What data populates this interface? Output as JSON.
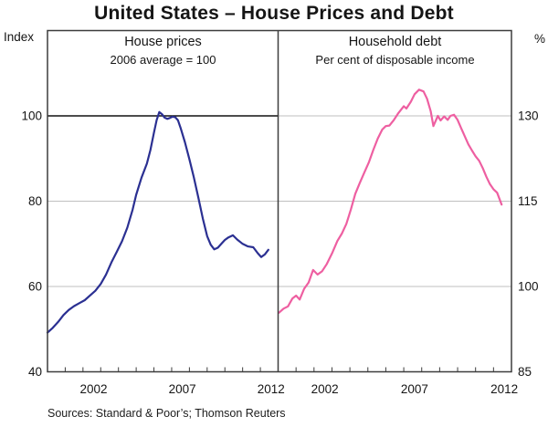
{
  "title": "United States – House Prices and Debt",
  "left_axis_unit": "Index",
  "right_axis_unit": "%",
  "source_note": "Sources: Standard & Poor’s; Thomson Reuters",
  "colors": {
    "house_prices_line": "#2b3092",
    "household_debt_line": "#ee5fa1",
    "gridline": "#bfbfbf",
    "reference_line": "#111111",
    "frame": "#3d3d3d",
    "text": "#151515"
  },
  "chart_data": [
    {
      "type": "line",
      "panel": "left",
      "title": "House prices",
      "subtitle": "2006 average = 100",
      "ylabel": "Index",
      "ylim": [
        40,
        120
      ],
      "yticks": [
        40,
        60,
        80,
        100
      ],
      "ref_line": 100,
      "xlim": [
        2000,
        2013
      ],
      "xtick_years": [
        2002,
        2007,
        2012
      ],
      "grid": true,
      "legend": "none",
      "series": [
        {
          "id": "house-prices-line",
          "name": "House prices (2006 average = 100)",
          "color": "#2b3092",
          "x": [
            2000.0,
            2000.3,
            2000.6,
            2000.9,
            2001.2,
            2001.5,
            2001.8,
            2002.1,
            2002.4,
            2002.7,
            2003.0,
            2003.3,
            2003.6,
            2003.9,
            2004.2,
            2004.5,
            2004.8,
            2005.0,
            2005.3,
            2005.6,
            2005.8,
            2006.0,
            2006.15,
            2006.3,
            2006.45,
            2006.6,
            2006.75,
            2006.9,
            2007.05,
            2007.2,
            2007.35,
            2007.5,
            2007.75,
            2008.0,
            2008.25,
            2008.5,
            2008.75,
            2009.0,
            2009.2,
            2009.4,
            2009.6,
            2009.8,
            2010.0,
            2010.2,
            2010.45,
            2010.7,
            2011.0,
            2011.3,
            2011.6,
            2011.85,
            2012.05,
            2012.25,
            2012.45
          ],
          "y": [
            49.2,
            50.3,
            51.7,
            53.3,
            54.5,
            55.4,
            56.1,
            56.8,
            57.9,
            59.0,
            60.6,
            62.8,
            65.6,
            68.1,
            70.6,
            73.8,
            78.0,
            81.5,
            85.5,
            88.8,
            92.0,
            96.0,
            99.0,
            100.9,
            100.4,
            99.6,
            99.3,
            99.5,
            99.8,
            99.7,
            99.0,
            97.2,
            93.8,
            89.8,
            85.6,
            80.9,
            76.0,
            71.8,
            69.8,
            68.7,
            69.1,
            70.0,
            70.9,
            71.5,
            72.0,
            71.0,
            70.0,
            69.4,
            69.2,
            67.8,
            66.9,
            67.5,
            68.6
          ]
        }
      ]
    },
    {
      "type": "line",
      "panel": "right",
      "title": "Household debt",
      "subtitle": "Per cent of disposable income",
      "ylabel": "%",
      "ylim": [
        85,
        145
      ],
      "yticks": [
        85,
        100,
        115,
        130
      ],
      "ref_line": null,
      "xlim": [
        2000,
        2013
      ],
      "xtick_years": [
        2002,
        2007,
        2012
      ],
      "grid": true,
      "legend": "none",
      "series": [
        {
          "id": "household-debt-line",
          "name": "Household debt (per cent of disposable income)",
          "color": "#ee5fa1",
          "x": [
            2000.05,
            2000.3,
            2000.55,
            2000.8,
            2001.0,
            2001.2,
            2001.45,
            2001.7,
            2001.95,
            2002.2,
            2002.45,
            2002.7,
            2003.0,
            2003.3,
            2003.55,
            2003.8,
            2004.05,
            2004.3,
            2004.55,
            2004.8,
            2005.05,
            2005.3,
            2005.55,
            2005.8,
            2006.0,
            2006.2,
            2006.45,
            2006.7,
            2007.0,
            2007.15,
            2007.4,
            2007.6,
            2007.85,
            2008.1,
            2008.3,
            2008.5,
            2008.65,
            2008.9,
            2009.05,
            2009.25,
            2009.45,
            2009.6,
            2009.8,
            2010.0,
            2010.2,
            2010.4,
            2010.6,
            2010.8,
            2011.0,
            2011.2,
            2011.4,
            2011.6,
            2011.8,
            2012.0,
            2012.2,
            2012.45
          ],
          "y": [
            95.4,
            96.1,
            96.5,
            97.9,
            98.4,
            97.7,
            99.6,
            100.7,
            102.9,
            102.1,
            102.7,
            103.9,
            105.8,
            108.0,
            109.3,
            111.0,
            113.5,
            116.3,
            118.2,
            120.0,
            121.8,
            124.0,
            126.0,
            127.6,
            128.2,
            128.3,
            129.3,
            130.5,
            131.7,
            131.3,
            132.5,
            133.8,
            134.6,
            134.3,
            133.0,
            130.8,
            128.2,
            130.0,
            129.2,
            129.9,
            129.3,
            130.0,
            130.2,
            129.3,
            127.8,
            126.4,
            125.0,
            123.9,
            122.9,
            122.1,
            120.8,
            119.3,
            118.0,
            117.1,
            116.5,
            114.4
          ]
        }
      ]
    }
  ]
}
